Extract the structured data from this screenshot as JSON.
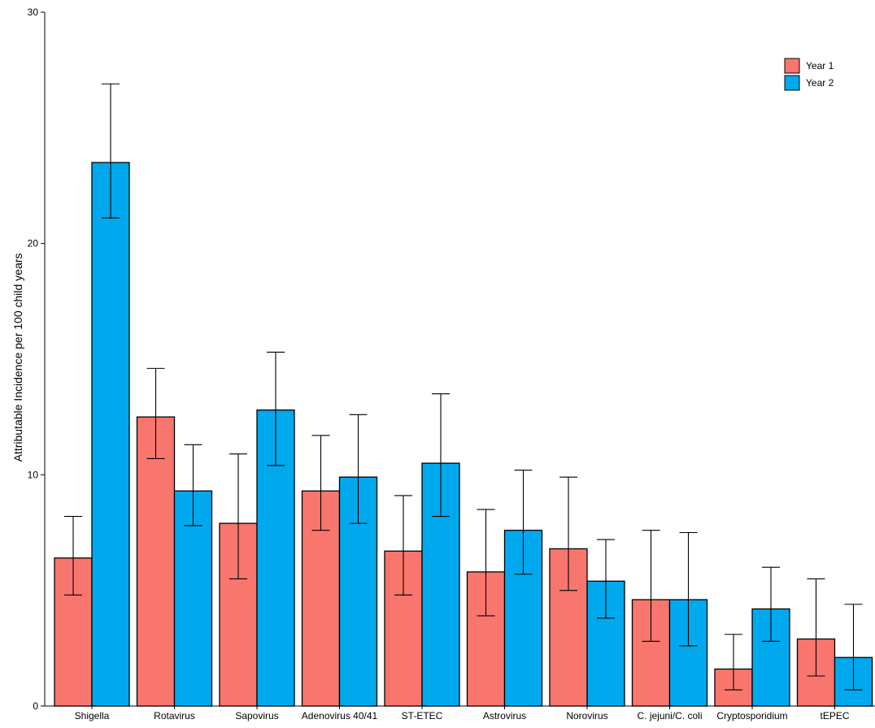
{
  "chart_data": {
    "type": "bar",
    "title": "",
    "xlabel": "",
    "ylabel": "Attributable Incidence per 100 child years",
    "ylim": [
      0,
      30
    ],
    "yticks": [
      0,
      10,
      20,
      30
    ],
    "grid": false,
    "legend_position": "top-right",
    "categories": [
      "Shigella",
      "Rotavirus",
      "Sapovirus",
      "Adenovirus 40/41",
      "ST-ETEC",
      "Astrovirus",
      "Norovirus",
      "C. jejuni/C. coli",
      "Cryptosporidium",
      "tEPEC"
    ],
    "series": [
      {
        "name": "Year 1",
        "color": "#F8766D",
        "values": [
          6.4,
          12.5,
          7.9,
          9.3,
          6.7,
          5.8,
          6.8,
          4.6,
          1.6,
          2.9
        ],
        "lower": [
          4.8,
          10.7,
          5.5,
          7.6,
          4.8,
          3.9,
          5.0,
          2.8,
          0.7,
          1.3
        ],
        "upper": [
          8.2,
          14.6,
          10.9,
          11.7,
          9.1,
          8.5,
          9.9,
          7.6,
          3.1,
          5.5
        ]
      },
      {
        "name": "Year 2",
        "color": "#00A9EE",
        "values": [
          23.5,
          9.3,
          12.8,
          9.9,
          10.5,
          7.6,
          5.4,
          4.6,
          4.2,
          2.1
        ],
        "lower": [
          21.1,
          7.8,
          10.4,
          7.9,
          8.2,
          5.7,
          3.8,
          2.6,
          2.8,
          0.7
        ],
        "upper": [
          26.9,
          11.3,
          15.3,
          12.6,
          13.5,
          10.2,
          7.2,
          7.5,
          6.0,
          4.4
        ]
      }
    ]
  }
}
